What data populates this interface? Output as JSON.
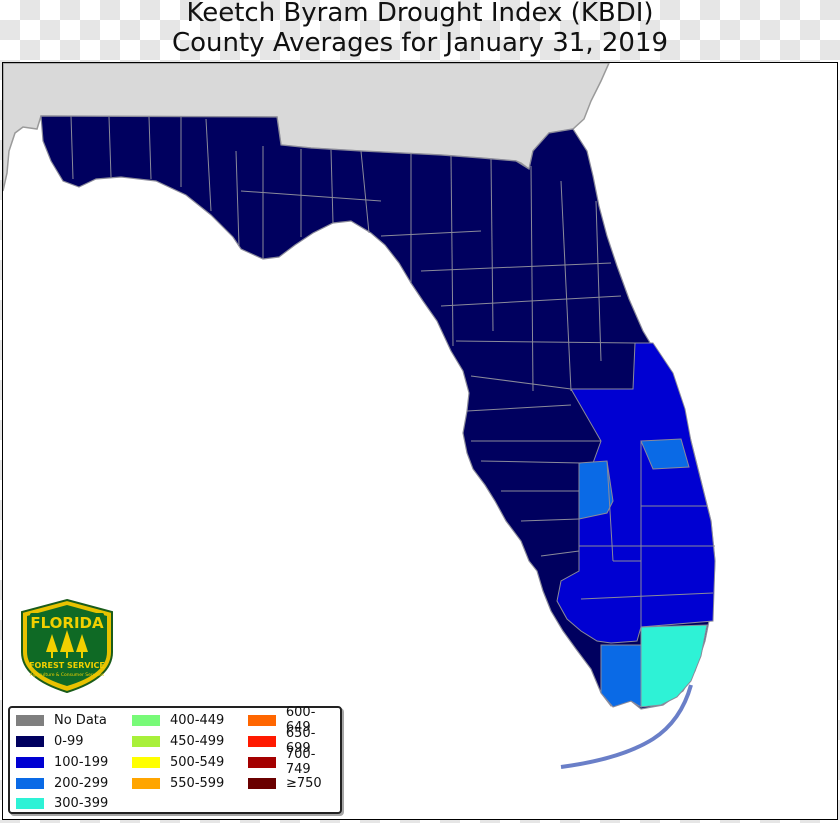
{
  "title_line1": "Keetch Byram Drought Index (KBDI)",
  "title_line2": "County Averages for January 31, 2019",
  "logo": {
    "top_text": "FLORIDA",
    "bottom_text": "FOREST SERVICE",
    "sub_text": "Agriculture & Consumer Services"
  },
  "legend": [
    {
      "label": "No Data",
      "color": "#7f7f7f"
    },
    {
      "label": "0-99",
      "color": "#00005f"
    },
    {
      "label": "100-199",
      "color": "#0000d2"
    },
    {
      "label": "200-299",
      "color": "#0a6ae6"
    },
    {
      "label": "300-399",
      "color": "#2ef2d6"
    },
    {
      "label": "400-449",
      "color": "#78fa78"
    },
    {
      "label": "450-499",
      "color": "#a8f03a"
    },
    {
      "label": "500-549",
      "color": "#ffff00"
    },
    {
      "label": "550-599",
      "color": "#ffa500"
    },
    {
      "label": "600-649",
      "color": "#ff6600"
    },
    {
      "label": "650-699",
      "color": "#ff1a00"
    },
    {
      "label": "700-749",
      "color": "#a40000"
    },
    {
      "label": "≥750",
      "color": "#6a0000"
    }
  ],
  "colors": {
    "outside_state": "#d9d9d9",
    "county_border": "#8a8a9a"
  }
}
